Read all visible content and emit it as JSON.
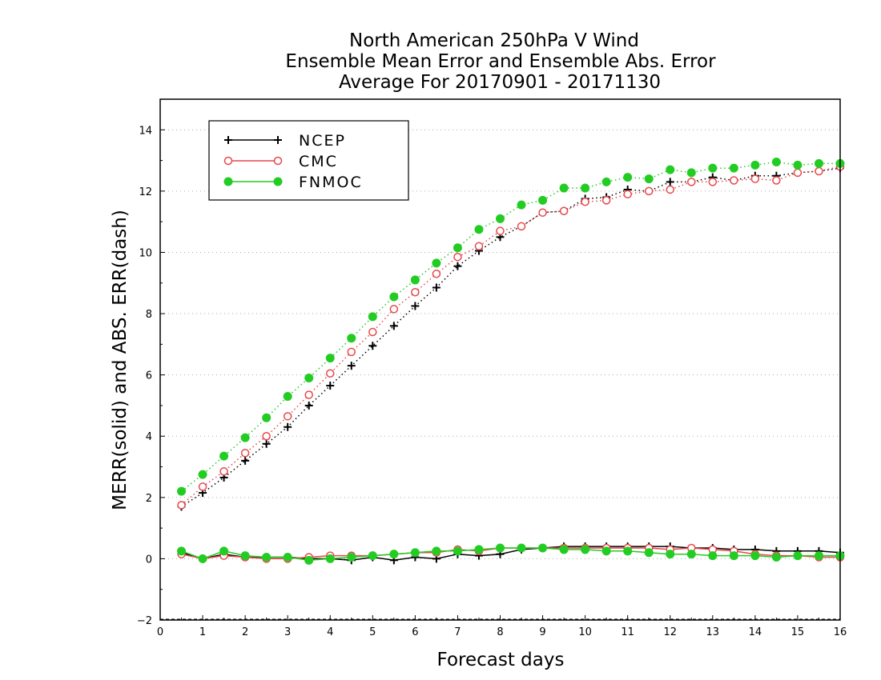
{
  "chart_data": {
    "type": "line",
    "title_lines": [
      "North American 250hPa V Wind",
      "Ensemble Mean Error and Ensemble Abs. Error",
      "Average For 20170901 - 20171130"
    ],
    "xlabel": "Forecast days",
    "ylabel": "MERR(solid) and ABS. ERR(dash)",
    "xlim": [
      0,
      16
    ],
    "ylim": [
      -2,
      15
    ],
    "xticks": [
      0,
      1,
      2,
      3,
      4,
      5,
      6,
      7,
      8,
      9,
      10,
      11,
      12,
      13,
      14,
      15,
      16
    ],
    "yticks": [
      -2,
      0,
      2,
      4,
      6,
      8,
      10,
      12,
      14
    ],
    "grid": "horizontal dotted",
    "legend_position": "top-left",
    "x": [
      0.5,
      1.0,
      1.5,
      2.0,
      2.5,
      3.0,
      3.5,
      4.0,
      4.5,
      5.0,
      5.5,
      6.0,
      6.5,
      7.0,
      7.5,
      8.0,
      8.5,
      9.0,
      9.5,
      10.0,
      10.5,
      11.0,
      11.5,
      12.0,
      12.5,
      13.0,
      13.5,
      14.0,
      14.5,
      15.0,
      15.5,
      16.0
    ],
    "series": [
      {
        "name": "NCEP",
        "color": "#000000",
        "marker": "plus",
        "abs_error": [
          1.7,
          2.15,
          2.65,
          3.2,
          3.75,
          4.3,
          5.0,
          5.65,
          6.3,
          6.95,
          7.6,
          8.25,
          8.85,
          9.55,
          10.05,
          10.5,
          10.85,
          11.3,
          11.35,
          11.75,
          11.8,
          12.05,
          12.0,
          12.3,
          12.3,
          12.45,
          12.35,
          12.5,
          12.5,
          12.6,
          12.65,
          12.75
        ],
        "mean_error": [
          0.2,
          0.0,
          0.15,
          0.05,
          0.05,
          0.05,
          0.0,
          0.0,
          -0.05,
          0.05,
          -0.05,
          0.05,
          0.0,
          0.15,
          0.1,
          0.15,
          0.3,
          0.35,
          0.4,
          0.4,
          0.4,
          0.4,
          0.4,
          0.4,
          0.35,
          0.35,
          0.3,
          0.3,
          0.25,
          0.25,
          0.25,
          0.2
        ]
      },
      {
        "name": "CMC",
        "color": "#e8474c",
        "marker": "open-circle",
        "abs_error": [
          1.75,
          2.35,
          2.85,
          3.45,
          4.0,
          4.65,
          5.35,
          6.05,
          6.75,
          7.4,
          8.15,
          8.7,
          9.3,
          9.85,
          10.2,
          10.7,
          10.85,
          11.3,
          11.35,
          11.65,
          11.7,
          11.9,
          12.0,
          12.05,
          12.3,
          12.3,
          12.35,
          12.4,
          12.35,
          12.6,
          12.65,
          12.8
        ],
        "mean_error": [
          0.15,
          0.0,
          0.1,
          0.05,
          0.0,
          0.0,
          0.05,
          0.1,
          0.1,
          0.1,
          0.15,
          0.2,
          0.2,
          0.3,
          0.25,
          0.35,
          0.35,
          0.35,
          0.35,
          0.35,
          0.35,
          0.35,
          0.35,
          0.3,
          0.35,
          0.3,
          0.25,
          0.15,
          0.1,
          0.1,
          0.05,
          0.05
        ]
      },
      {
        "name": "FNMOC",
        "color": "#22cc22",
        "marker": "filled-circle",
        "abs_error": [
          2.2,
          2.75,
          3.35,
          3.95,
          4.6,
          5.3,
          5.9,
          6.55,
          7.2,
          7.9,
          8.55,
          9.1,
          9.65,
          10.15,
          10.75,
          11.1,
          11.55,
          11.7,
          12.1,
          12.1,
          12.3,
          12.45,
          12.4,
          12.7,
          12.6,
          12.75,
          12.75,
          12.85,
          12.95,
          12.85,
          12.9,
          12.9
        ],
        "mean_error": [
          0.25,
          0.0,
          0.25,
          0.1,
          0.05,
          0.05,
          -0.05,
          0.0,
          0.05,
          0.1,
          0.15,
          0.2,
          0.25,
          0.25,
          0.3,
          0.35,
          0.35,
          0.35,
          0.3,
          0.3,
          0.25,
          0.25,
          0.2,
          0.15,
          0.15,
          0.1,
          0.1,
          0.1,
          0.05,
          0.1,
          0.1,
          0.1
        ]
      }
    ]
  }
}
